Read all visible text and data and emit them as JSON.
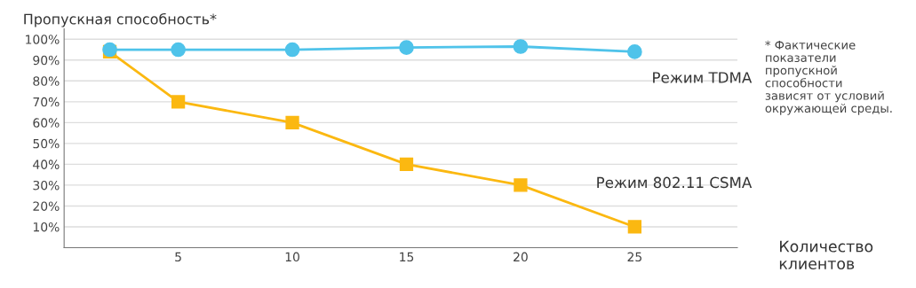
{
  "chart_data": {
    "type": "line",
    "ylabel": "Пропускная способность*",
    "xlabel": "Количество клиентов",
    "x": [
      2,
      5,
      10,
      15,
      20,
      25
    ],
    "xlim": [
      0,
      29.5
    ],
    "xticks": [
      5,
      10,
      15,
      20,
      25
    ],
    "ylim": [
      0,
      105
    ],
    "yticks": [
      {
        "value": 10,
        "label": "10%"
      },
      {
        "value": 20,
        "label": "20%"
      },
      {
        "value": 30,
        "label": "30%"
      },
      {
        "value": 40,
        "label": "40%"
      },
      {
        "value": 50,
        "label": "50%"
      },
      {
        "value": 60,
        "label": "60%"
      },
      {
        "value": 70,
        "label": "70%"
      },
      {
        "value": 80,
        "label": "80%"
      },
      {
        "value": 90,
        "label": "90%"
      },
      {
        "value": 100,
        "label": "100%"
      }
    ],
    "grid": "y",
    "legend": false,
    "series": [
      {
        "name": "Режим TDMA",
        "color": "#4fc3ea",
        "marker": "circle",
        "values": [
          95,
          95,
          95,
          96,
          96.5,
          94
        ]
      },
      {
        "name": "Режим 802.11 CSMA",
        "color": "#fbb811",
        "marker": "square",
        "values": [
          94,
          70,
          60,
          40,
          30,
          10
        ]
      }
    ],
    "annotations": [
      "* Фактические\nпоказатели\nпропускной\nспособности\nзависят от условий\nокружающей среды."
    ]
  }
}
